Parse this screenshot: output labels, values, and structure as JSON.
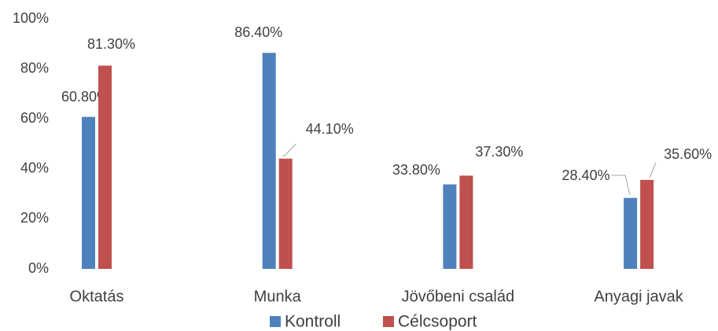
{
  "chart_data": {
    "type": "bar",
    "categories": [
      "Oktatás",
      "Munka",
      "Jövőbeni család",
      "Anyagi javak"
    ],
    "series": [
      {
        "name": "Kontroll",
        "color": "#4f81bd",
        "values": [
          60.8,
          86.4,
          33.8,
          28.4
        ],
        "value_labels": [
          "60.80%",
          "86.40%",
          "33.80%",
          "28.40%"
        ]
      },
      {
        "name": "Célcsoport",
        "color": "#c0504d",
        "values": [
          81.3,
          44.1,
          37.3,
          35.6
        ],
        "value_labels": [
          "81.30%",
          "44.10%",
          "37.30%",
          "35.60%"
        ]
      }
    ],
    "ylim": [
      0,
      100
    ],
    "yticks": [
      {
        "value": 0,
        "label": "0%"
      },
      {
        "value": 20,
        "label": "20%"
      },
      {
        "value": 40,
        "label": "40%"
      },
      {
        "value": 60,
        "label": "60%"
      },
      {
        "value": 80,
        "label": "80%"
      },
      {
        "value": 100,
        "label": "100%"
      }
    ],
    "grid": false,
    "legend": "bottom"
  }
}
